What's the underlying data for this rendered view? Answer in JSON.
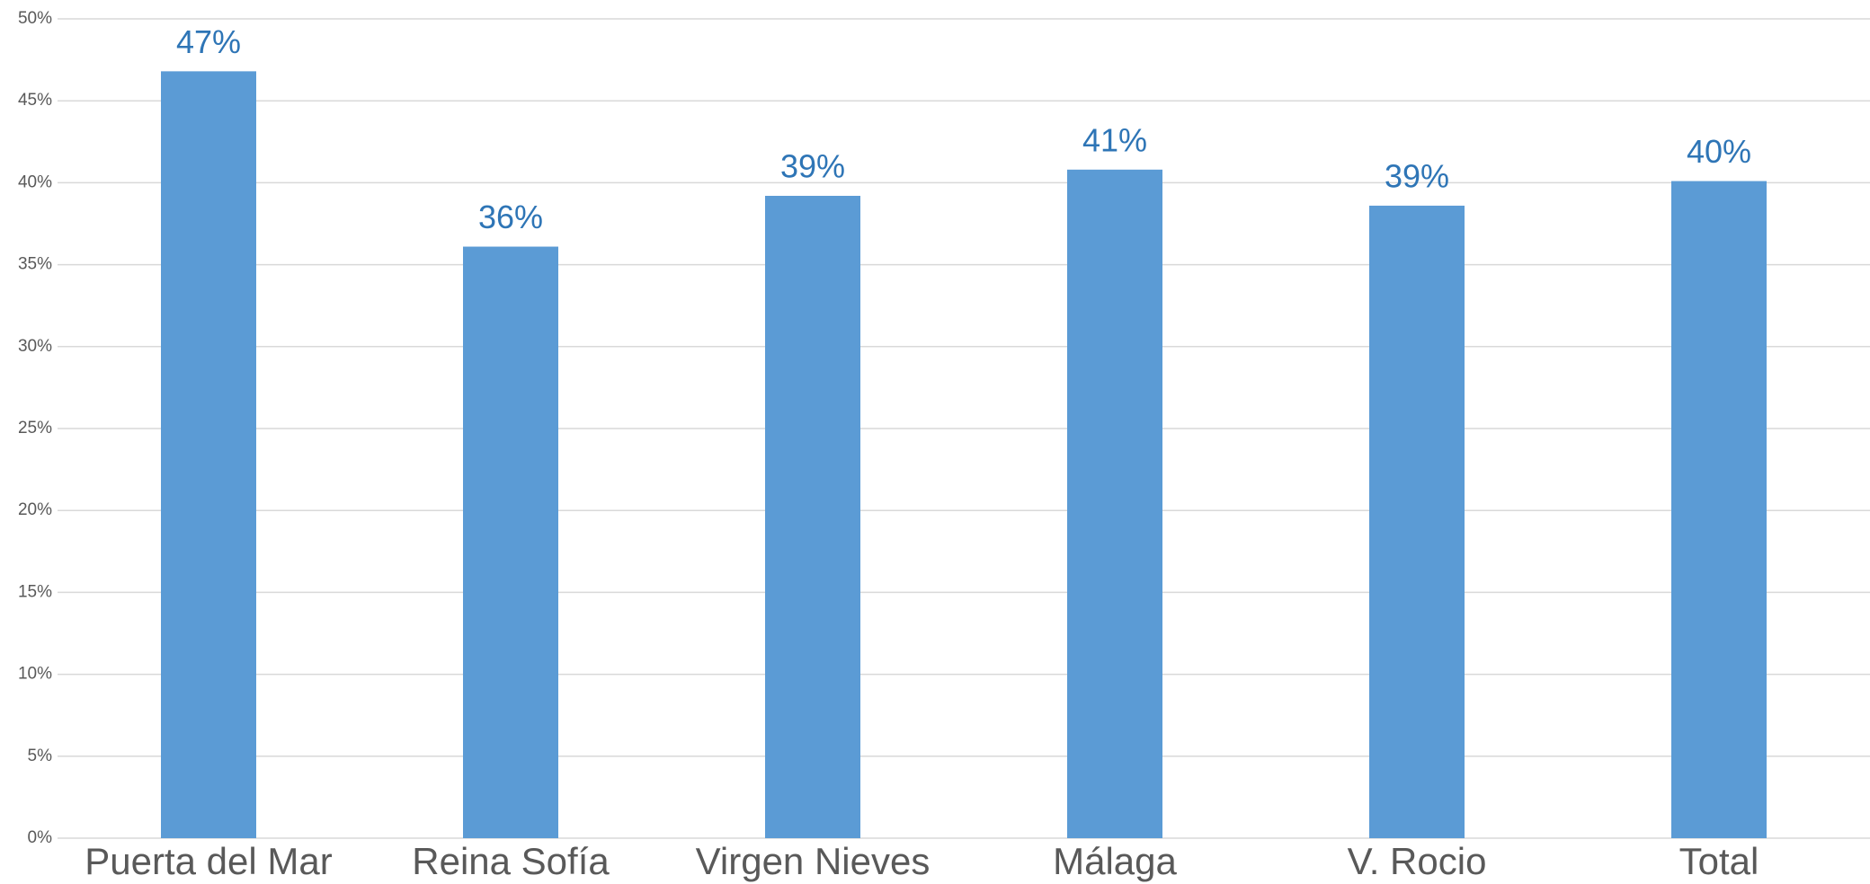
{
  "chart_data": {
    "type": "bar",
    "categories": [
      "Puerta del Mar",
      "Reina Sofía",
      "Virgen Nieves",
      "Málaga",
      "V. Rocio",
      "Total"
    ],
    "values": [
      46.8,
      36.1,
      39.2,
      40.8,
      38.6,
      40.1
    ],
    "value_labels": [
      "47%",
      "36%",
      "39%",
      "41%",
      "39%",
      "40%"
    ],
    "color": "#5b9bd5",
    "ylim": [
      0,
      50
    ],
    "yticks": [
      {
        "value": 0,
        "label": "0%"
      },
      {
        "value": 5,
        "label": "5%"
      },
      {
        "value": 10,
        "label": "10%"
      },
      {
        "value": 15,
        "label": "15%"
      },
      {
        "value": 20,
        "label": "20%"
      },
      {
        "value": 25,
        "label": "25%"
      },
      {
        "value": 30,
        "label": "30%"
      },
      {
        "value": 35,
        "label": "35%"
      },
      {
        "value": 40,
        "label": "40%"
      },
      {
        "value": 45,
        "label": "45%"
      },
      {
        "value": 50,
        "label": "50%"
      }
    ],
    "grid": true
  }
}
